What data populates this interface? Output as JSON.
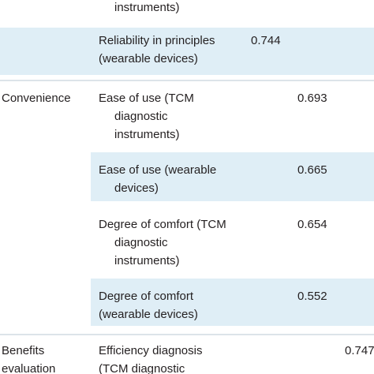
{
  "table": {
    "rows": [
      {
        "cells": [
          null,
          [
            "instruments)"
          ],
          null,
          null,
          null
        ]
      },
      {
        "cells": [
          null,
          [
            "Reliability in principles",
            "(wearable devices)"
          ],
          0.744,
          null,
          null
        ]
      },
      {
        "cells": [
          [
            "Convenience"
          ],
          [
            "Ease of use (TCM",
            "diagnostic",
            "instruments)"
          ],
          null,
          0.693,
          null
        ]
      },
      {
        "cells": [
          null,
          [
            "Ease of use (wearable",
            "devices)"
          ],
          null,
          0.665,
          null
        ]
      },
      {
        "cells": [
          null,
          [
            "Degree of comfort (TCM",
            "diagnostic",
            "instruments)"
          ],
          null,
          0.654,
          null
        ]
      },
      {
        "cells": [
          null,
          [
            "Degree of comfort",
            "(wearable devices)"
          ],
          null,
          0.552,
          null
        ]
      },
      {
        "cells": [
          [
            "Benefits",
            "evaluation"
          ],
          [
            "Efficiency diagnosis",
            "(TCM diagnostic"
          ],
          null,
          null,
          0.747
        ]
      }
    ]
  }
}
